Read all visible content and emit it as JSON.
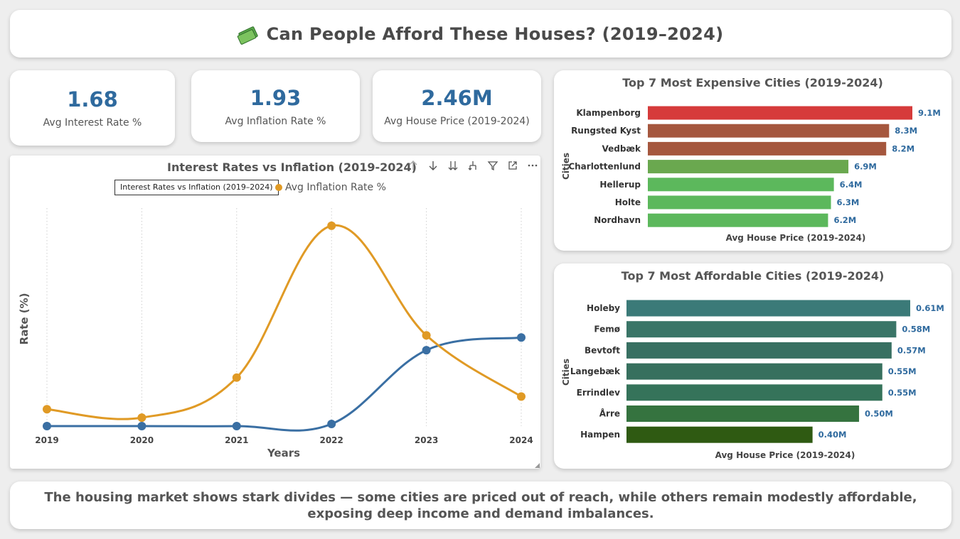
{
  "header": {
    "title": "Can People Afford These Houses? (2019–2024)",
    "icon": "money-with-wings-icon"
  },
  "kpis": [
    {
      "value": "1.68",
      "label": "Avg Interest Rate %"
    },
    {
      "value": "1.93",
      "label": "Avg Inflation Rate %"
    },
    {
      "value": "2.46M",
      "label": "Avg House Price (2019-2024)"
    }
  ],
  "line_chart": {
    "title": "Interest Rates vs Inflation (2019-2024)",
    "tooltip": "Interest Rates vs Inflation (2019–2024)",
    "legend_inflation": "Avg Inflation Rate %",
    "toolbar": [
      "arrow-up-icon",
      "arrow-down-icon",
      "double-arrow-down-icon",
      "expand-hierarchy-icon",
      "filter-icon",
      "focus-mode-icon",
      "more-options-icon"
    ]
  },
  "expensive": {
    "title": "Top 7 Most Expensive Cities (2019-2024)"
  },
  "affordable": {
    "title": "Top 7 Most Affordable Cities (2019-2024)"
  },
  "footer": {
    "text": "The housing market shows stark divides — some cities are priced out of reach, while others remain modestly affordable, exposing deep income and demand imbalances."
  },
  "chart_data": [
    {
      "type": "line",
      "title": "Interest Rates vs Inflation (2019-2024)",
      "xlabel": "Years",
      "ylabel": "Rate (%)",
      "x": [
        "2019",
        "2020",
        "2021",
        "2022",
        "2023",
        "2024"
      ],
      "series": [
        {
          "name": "Avg Interest Rate %",
          "color": "#3a6fa3",
          "values": [
            0.0,
            0.0,
            0.0,
            0.1,
            3.6,
            4.2
          ]
        },
        {
          "name": "Avg Inflation Rate %",
          "color": "#e09a25",
          "values": [
            0.8,
            0.4,
            2.3,
            9.5,
            4.3,
            1.4
          ]
        }
      ],
      "ylim": [
        0,
        10
      ],
      "grid": "vertical-dotted"
    },
    {
      "type": "bar",
      "orientation": "horizontal",
      "title": "Top 7 Most Expensive Cities (2019-2024)",
      "xlabel": "Avg House Price (2019-2024)",
      "ylabel": "Cities",
      "categories": [
        "Klampenborg",
        "Rungsted Kyst",
        "Vedbæk",
        "Charlottenlund",
        "Hellerup",
        "Holte",
        "Nordhavn"
      ],
      "values": [
        9.1,
        8.3,
        8.2,
        6.9,
        6.4,
        6.3,
        6.2
      ],
      "labels": [
        "9.1M",
        "8.3M",
        "8.2M",
        "6.9M",
        "6.4M",
        "6.3M",
        "6.2M"
      ],
      "colors": [
        "#d63b3b",
        "#a5573e",
        "#a5573e",
        "#6aa84f",
        "#5cb85c",
        "#5cb85c",
        "#5cb85c"
      ],
      "xlim": [
        0,
        9.1
      ]
    },
    {
      "type": "bar",
      "orientation": "horizontal",
      "title": "Top 7 Most Affordable Cities (2019-2024)",
      "xlabel": "Avg House Price (2019-2024)",
      "ylabel": "Cities",
      "categories": [
        "Holeby",
        "Femø",
        "Bevtoft",
        "Langebæk",
        "Errindlev",
        "Årre",
        "Hampen"
      ],
      "values": [
        0.61,
        0.58,
        0.57,
        0.55,
        0.55,
        0.5,
        0.4
      ],
      "labels": [
        "0.61M",
        "0.58M",
        "0.57M",
        "0.55M",
        "0.55M",
        "0.50M",
        "0.40M"
      ],
      "colors": [
        "#3b7a78",
        "#3a7567",
        "#387062",
        "#37705e",
        "#35735a",
        "#35733f",
        "#2f5a12"
      ],
      "xlim": [
        0,
        0.61
      ]
    }
  ]
}
